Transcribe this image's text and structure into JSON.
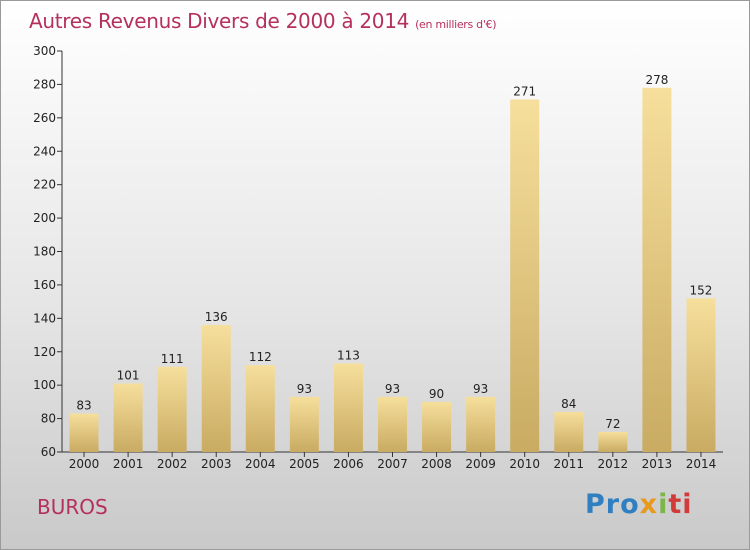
{
  "title": "Autres Revenus Divers de 2000 à 2014",
  "title_unit": "(en milliers d'€)",
  "commune": "BUROS",
  "logo": {
    "part1": "Pro",
    "part2": "x",
    "part3": "i",
    "part4": "ti"
  },
  "colors": {
    "title": "#b5305e",
    "bar_light": "#f6df9c",
    "bar_dark": "#c9ab62"
  },
  "chart_data": {
    "type": "bar",
    "title": "Autres Revenus Divers de 2000 à 2014",
    "subtitle": "(en milliers d'€)",
    "categories": [
      "2000",
      "2001",
      "2002",
      "2003",
      "2004",
      "2005",
      "2006",
      "2007",
      "2008",
      "2009",
      "2010",
      "2011",
      "2012",
      "2013",
      "2014"
    ],
    "values": [
      83,
      101,
      111,
      136,
      112,
      93,
      113,
      93,
      90,
      93,
      271,
      84,
      72,
      278,
      152
    ],
    "ylim": [
      60,
      300
    ],
    "yticks": [
      60,
      80,
      100,
      120,
      140,
      160,
      180,
      200,
      220,
      240,
      260,
      280,
      300
    ],
    "xlabel": "",
    "ylabel": "",
    "grid": false
  }
}
